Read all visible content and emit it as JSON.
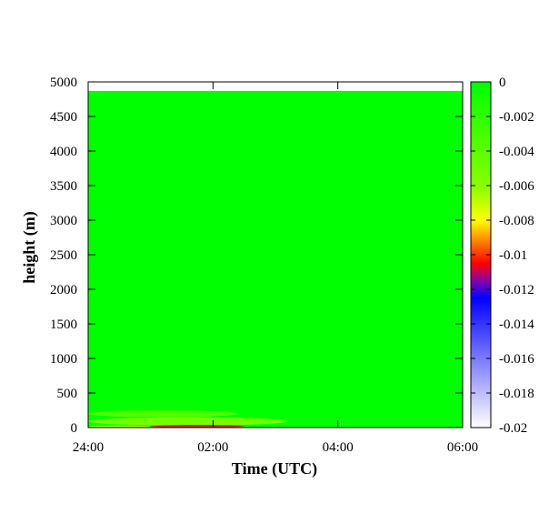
{
  "chart_data": {
    "type": "heatmap",
    "title": "",
    "xlabel": "Time (UTC)",
    "ylabel": "height (m)",
    "x_tick_labels": [
      "24:00",
      "02:00",
      "04:00",
      "06:00"
    ],
    "x_ticks_hours": [
      0,
      2,
      4,
      6
    ],
    "x_range_hours": [
      0,
      6
    ],
    "y_ticks": [
      0,
      500,
      1000,
      1500,
      2000,
      2500,
      3000,
      3500,
      4000,
      4500,
      5000
    ],
    "y_tick_labels": [
      "0",
      "500",
      "1000",
      "1500",
      "2000",
      "2500",
      "3000",
      "3500",
      "4000",
      "4500",
      "5000"
    ],
    "ylim": [
      0,
      5000
    ],
    "data_top_height": 4870,
    "colorbar": {
      "range": [
        -0.02,
        0
      ],
      "ticks": [
        0,
        -0.002,
        -0.004,
        -0.006,
        -0.008,
        -0.01,
        -0.012,
        -0.014,
        -0.016,
        -0.018,
        -0.02
      ],
      "tick_labels": [
        "0",
        "-0.002",
        "-0.004",
        "-0.006",
        "-0.008",
        "-0.01",
        "-0.012",
        "-0.014",
        "-0.016",
        "-0.018",
        "-0.02"
      ],
      "colormap": [
        {
          "value": 0,
          "color": "#00ff00"
        },
        {
          "value": -0.006,
          "color": "#88ff00"
        },
        {
          "value": -0.008,
          "color": "#ffff00"
        },
        {
          "value": -0.0095,
          "color": "#ff6600"
        },
        {
          "value": -0.0105,
          "color": "#ff0000"
        },
        {
          "value": -0.0115,
          "color": "#8800aa"
        },
        {
          "value": -0.0125,
          "color": "#0000ff"
        },
        {
          "value": -0.016,
          "color": "#7a7aff"
        },
        {
          "value": -0.02,
          "color": "#ffffff"
        }
      ]
    },
    "background_value": 0,
    "features": [
      {
        "hour_start": 0.0,
        "hour_end": 2.4,
        "height_low": 150,
        "height_high": 250,
        "value": -0.004
      },
      {
        "hour_start": 0.0,
        "hour_end": 3.2,
        "height_low": 30,
        "height_high": 150,
        "value": -0.006
      },
      {
        "hour_start": 1.0,
        "hour_end": 2.5,
        "height_low": 0,
        "height_high": 40,
        "value": -0.0105
      },
      {
        "hour_start": 0.0,
        "hour_end": 1.0,
        "height_low": 0,
        "height_high": 30,
        "value": -0.007
      }
    ]
  }
}
